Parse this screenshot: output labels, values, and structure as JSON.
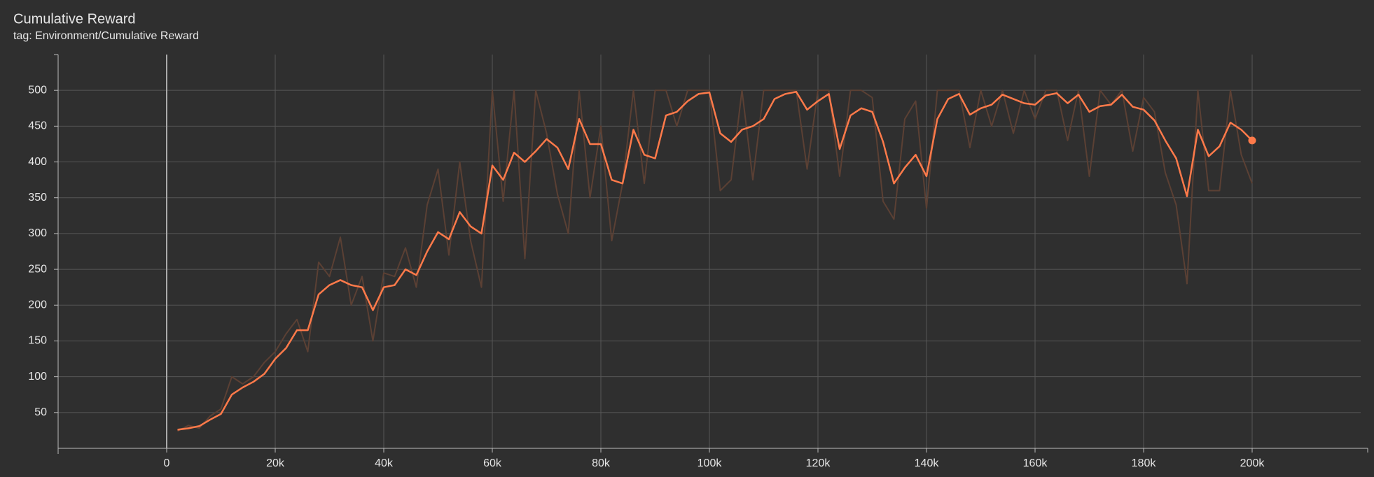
{
  "chart_data": {
    "type": "line",
    "title": "Cumulative Reward",
    "subtitle": "tag: Environment/Cumulative Reward",
    "x": [
      2000,
      4000,
      6000,
      8000,
      10000,
      12000,
      14000,
      16000,
      18000,
      20000,
      22000,
      24000,
      26000,
      28000,
      30000,
      32000,
      34000,
      36000,
      38000,
      40000,
      42000,
      44000,
      46000,
      48000,
      50000,
      52000,
      54000,
      56000,
      58000,
      60000,
      62000,
      64000,
      66000,
      68000,
      70000,
      72000,
      74000,
      76000,
      78000,
      80000,
      82000,
      84000,
      86000,
      88000,
      90000,
      92000,
      94000,
      96000,
      98000,
      100000,
      102000,
      104000,
      106000,
      108000,
      110000,
      112000,
      114000,
      116000,
      118000,
      120000,
      122000,
      124000,
      126000,
      128000,
      130000,
      132000,
      134000,
      136000,
      138000,
      140000,
      142000,
      144000,
      146000,
      148000,
      150000,
      152000,
      154000,
      156000,
      158000,
      160000,
      162000,
      164000,
      166000,
      168000,
      170000,
      172000,
      174000,
      176000,
      178000,
      180000,
      182000,
      184000,
      186000,
      188000,
      190000,
      192000,
      194000,
      196000,
      198000,
      200000
    ],
    "series": [
      {
        "color": "#5b4034",
        "values": [
          24,
          32,
          28,
          45,
          55,
          100,
          90,
          100,
          120,
          135,
          160,
          180,
          135,
          260,
          240,
          295,
          200,
          240,
          150,
          245,
          240,
          280,
          225,
          340,
          390,
          270,
          400,
          290,
          225,
          500,
          345,
          500,
          265,
          500,
          440,
          355,
          300,
          500,
          350,
          450,
          290,
          370,
          500,
          370,
          500,
          500,
          450,
          500,
          500,
          500,
          360,
          375,
          500,
          375,
          500,
          500,
          500,
          500,
          390,
          500,
          500,
          380,
          500,
          500,
          490,
          345,
          320,
          460,
          485,
          335,
          500,
          500,
          500,
          420,
          500,
          450,
          500,
          440,
          500,
          460,
          500,
          500,
          430,
          500,
          380,
          500,
          480,
          500,
          415,
          490,
          470,
          385,
          340,
          230,
          500,
          360,
          360,
          500,
          410,
          370
        ]
      },
      {
        "color": "#ff7a4a",
        "values": [
          26,
          28,
          31,
          40,
          48,
          75,
          85,
          93,
          104,
          125,
          140,
          165,
          165,
          215,
          228,
          235,
          228,
          225,
          193,
          225,
          228,
          250,
          242,
          275,
          302,
          292,
          330,
          310,
          300,
          395,
          375,
          413,
          400,
          415,
          432,
          420,
          390,
          460,
          425,
          425,
          375,
          370,
          445,
          410,
          405,
          465,
          470,
          485,
          495,
          497,
          440,
          428,
          445,
          450,
          460,
          488,
          495,
          498,
          473,
          485,
          495,
          418,
          465,
          475,
          470,
          428,
          370,
          392,
          410,
          380,
          460,
          488,
          495,
          466,
          475,
          480,
          494,
          488,
          482,
          480,
          493,
          496,
          482,
          494,
          470,
          478,
          480,
          494,
          477,
          473,
          458,
          430,
          405,
          352,
          445,
          408,
          422,
          455,
          445,
          430
        ]
      }
    ],
    "xlim": [
      -20000,
      220000
    ],
    "xticks": [
      0,
      {
        "value": 20000,
        "label": "20k"
      },
      {
        "value": 40000,
        "label": "40k"
      },
      {
        "value": 60000,
        "label": "60k"
      },
      {
        "value": 80000,
        "label": "80k"
      },
      {
        "value": 100000,
        "label": "100k"
      },
      {
        "value": 120000,
        "label": "120k"
      },
      {
        "value": 140000,
        "label": "140k"
      },
      {
        "value": 160000,
        "label": "160k"
      },
      {
        "value": 180000,
        "label": "180k"
      },
      {
        "value": 200000,
        "label": "200k"
      }
    ],
    "ylim": [
      0,
      550
    ],
    "yticks": [
      50,
      100,
      150,
      200,
      250,
      300,
      350,
      400,
      450,
      500
    ],
    "grid": true
  }
}
